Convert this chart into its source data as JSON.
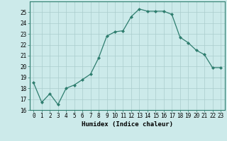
{
  "x": [
    0,
    1,
    2,
    3,
    4,
    5,
    6,
    7,
    8,
    9,
    10,
    11,
    12,
    13,
    14,
    15,
    16,
    17,
    18,
    19,
    20,
    21,
    22,
    23
  ],
  "y": [
    18.5,
    16.7,
    17.5,
    16.5,
    18.0,
    18.3,
    18.8,
    19.3,
    20.8,
    22.8,
    23.2,
    23.3,
    24.6,
    25.3,
    25.1,
    25.1,
    25.1,
    24.8,
    22.7,
    22.2,
    21.5,
    21.1,
    19.9,
    19.9
  ],
  "line_color": "#2e7d6e",
  "marker": "D",
  "marker_size": 2.0,
  "bg_color": "#cceaea",
  "grid_color": "#aacccc",
  "xlabel": "Humidex (Indice chaleur)",
  "ylim": [
    16,
    26
  ],
  "xlim": [
    -0.5,
    23.5
  ],
  "yticks": [
    16,
    17,
    18,
    19,
    20,
    21,
    22,
    23,
    24,
    25
  ],
  "xticks": [
    0,
    1,
    2,
    3,
    4,
    5,
    6,
    7,
    8,
    9,
    10,
    11,
    12,
    13,
    14,
    15,
    16,
    17,
    18,
    19,
    20,
    21,
    22,
    23
  ],
  "tick_fontsize": 5.5,
  "xlabel_fontsize": 6.5
}
